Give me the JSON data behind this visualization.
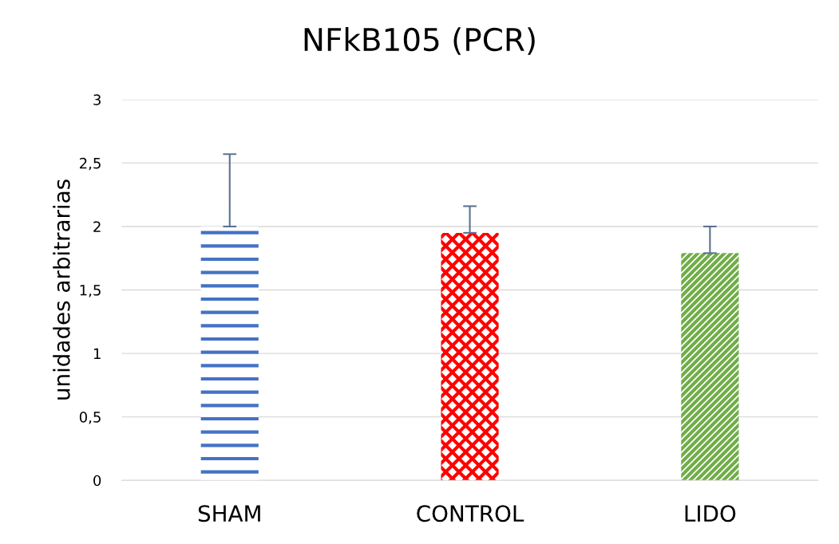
{
  "chart_data": {
    "type": "bar",
    "title": "NFkB105 (PCR)",
    "ylabel": "unidades arbitrarias",
    "categories": [
      "SHAM",
      "CONTROL",
      "LIDO"
    ],
    "values": [
      2.0,
      1.95,
      1.79
    ],
    "colors": [
      "#4472c4",
      "#ff0000",
      "#70ad47"
    ],
    "errors": [
      [
        2.0,
        2.57
      ],
      [
        1.95,
        2.16
      ],
      [
        1.79,
        2.0
      ]
    ],
    "ylim": [
      0,
      3
    ],
    "yticks": [
      0,
      {
        "value": 0.5,
        "label": "0,5"
      },
      1,
      {
        "value": 1.5,
        "label": "1,5"
      },
      2,
      {
        "value": 2.5,
        "label": "2,5"
      },
      3
    ],
    "grid": "y",
    "legend": false
  }
}
